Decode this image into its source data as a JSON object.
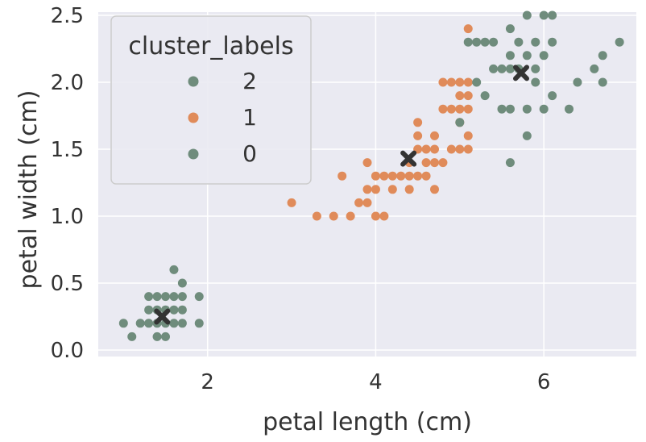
{
  "chart_data": {
    "type": "scatter",
    "xlabel": "petal length (cm)",
    "ylabel": "petal width (cm)",
    "xlim": [
      0.7,
      7.1
    ],
    "ylim": [
      0.0,
      2.5
    ],
    "x_ticks": [
      2,
      4,
      6
    ],
    "y_ticks": [
      0.0,
      0.5,
      1.0,
      1.5,
      2.0,
      2.5
    ],
    "x_tick_labels": [
      "2",
      "4",
      "6"
    ],
    "y_tick_labels": [
      "0.0",
      "0.5",
      "1.0",
      "1.5",
      "2.0",
      "2.5"
    ],
    "grid": true,
    "background": "#eaeaf2",
    "legend": {
      "title": "cluster_labels",
      "position": "top-left",
      "entries": [
        {
          "label": "2",
          "color": "#6f8c7c"
        },
        {
          "label": "1",
          "color": "#e08b5a"
        },
        {
          "label": "0",
          "color": "#6f8c7c"
        }
      ]
    },
    "series": [
      {
        "name": "0",
        "color": "#6f8c7c",
        "points": [
          [
            1.0,
            0.2
          ],
          [
            1.1,
            0.1
          ],
          [
            1.2,
            0.2
          ],
          [
            1.3,
            0.2
          ],
          [
            1.3,
            0.3
          ],
          [
            1.3,
            0.4
          ],
          [
            1.4,
            0.1
          ],
          [
            1.4,
            0.2
          ],
          [
            1.4,
            0.3
          ],
          [
            1.5,
            0.1
          ],
          [
            1.5,
            0.2
          ],
          [
            1.5,
            0.3
          ],
          [
            1.5,
            0.4
          ],
          [
            1.6,
            0.2
          ],
          [
            1.6,
            0.4
          ],
          [
            1.6,
            0.6
          ],
          [
            1.7,
            0.2
          ],
          [
            1.7,
            0.3
          ],
          [
            1.7,
            0.4
          ],
          [
            1.7,
            0.5
          ],
          [
            1.9,
            0.2
          ],
          [
            1.9,
            0.4
          ],
          [
            1.4,
            0.4
          ],
          [
            1.6,
            0.3
          ]
        ]
      },
      {
        "name": "1",
        "color": "#e08b5a",
        "points": [
          [
            3.0,
            1.1
          ],
          [
            3.3,
            1.0
          ],
          [
            3.5,
            1.0
          ],
          [
            3.6,
            1.3
          ],
          [
            3.7,
            1.0
          ],
          [
            3.8,
            1.1
          ],
          [
            3.9,
            1.1
          ],
          [
            3.9,
            1.2
          ],
          [
            3.9,
            1.4
          ],
          [
            4.0,
            1.0
          ],
          [
            4.0,
            1.2
          ],
          [
            4.0,
            1.3
          ],
          [
            4.1,
            1.0
          ],
          [
            4.1,
            1.3
          ],
          [
            4.2,
            1.2
          ],
          [
            4.2,
            1.3
          ],
          [
            4.3,
            1.3
          ],
          [
            4.4,
            1.2
          ],
          [
            4.4,
            1.3
          ],
          [
            4.4,
            1.4
          ],
          [
            4.5,
            1.3
          ],
          [
            4.5,
            1.5
          ],
          [
            4.5,
            1.7
          ],
          [
            4.5,
            1.6
          ],
          [
            4.6,
            1.3
          ],
          [
            4.6,
            1.4
          ],
          [
            4.6,
            1.5
          ],
          [
            4.7,
            1.2
          ],
          [
            4.7,
            1.4
          ],
          [
            4.7,
            1.5
          ],
          [
            4.7,
            1.6
          ],
          [
            4.8,
            1.4
          ],
          [
            4.8,
            1.8
          ],
          [
            4.9,
            1.5
          ],
          [
            4.9,
            1.8
          ],
          [
            5.0,
            1.5
          ],
          [
            5.0,
            1.8
          ],
          [
            5.0,
            1.9
          ],
          [
            5.0,
            2.0
          ],
          [
            5.1,
            1.5
          ],
          [
            5.1,
            1.6
          ],
          [
            5.1,
            1.8
          ],
          [
            5.1,
            1.9
          ],
          [
            5.1,
            2.0
          ],
          [
            5.1,
            2.4
          ],
          [
            4.8,
            2.0
          ],
          [
            4.9,
            2.0
          ],
          [
            5.0,
            1.7
          ]
        ]
      },
      {
        "name": "2",
        "color": "#6f8c7c",
        "points": [
          [
            5.0,
            1.7
          ],
          [
            5.1,
            2.3
          ],
          [
            5.2,
            2.3
          ],
          [
            5.2,
            2.0
          ],
          [
            5.3,
            2.3
          ],
          [
            5.3,
            1.9
          ],
          [
            5.4,
            2.1
          ],
          [
            5.4,
            2.3
          ],
          [
            5.5,
            2.1
          ],
          [
            5.5,
            1.8
          ],
          [
            5.6,
            1.4
          ],
          [
            5.6,
            2.4
          ],
          [
            5.6,
            2.2
          ],
          [
            5.6,
            2.1
          ],
          [
            5.6,
            1.8
          ],
          [
            5.7,
            2.3
          ],
          [
            5.7,
            2.1
          ],
          [
            5.8,
            2.2
          ],
          [
            5.8,
            2.5
          ],
          [
            5.8,
            1.8
          ],
          [
            5.9,
            2.3
          ],
          [
            5.9,
            2.1
          ],
          [
            5.8,
            1.6
          ],
          [
            6.0,
            2.5
          ],
          [
            6.0,
            1.8
          ],
          [
            6.0,
            2.2
          ],
          [
            6.1,
            2.5
          ],
          [
            6.1,
            2.3
          ],
          [
            6.1,
            1.9
          ],
          [
            6.3,
            1.8
          ],
          [
            6.4,
            2.0
          ],
          [
            6.6,
            2.1
          ],
          [
            6.7,
            2.2
          ],
          [
            6.7,
            2.0
          ],
          [
            6.9,
            2.3
          ],
          [
            5.9,
            2.0
          ]
        ]
      }
    ],
    "centroids": [
      {
        "x": 1.46,
        "y": 0.25
      },
      {
        "x": 4.39,
        "y": 1.43
      },
      {
        "x": 5.73,
        "y": 2.07
      }
    ],
    "centroid_color": "#333333"
  }
}
